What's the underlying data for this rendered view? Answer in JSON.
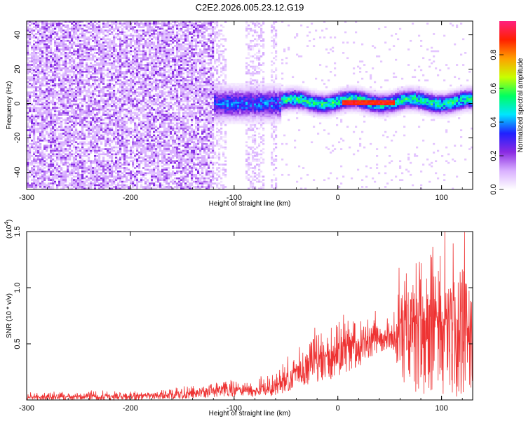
{
  "title": "C2E2.2026.005.23.12.G19",
  "chart_data": [
    {
      "type": "heatmap",
      "xlabel": "Height of straight line (km)",
      "ylabel": "Frequency (Hz)",
      "xlim": [
        -300,
        130
      ],
      "ylim": [
        -50,
        48
      ],
      "xticks": [
        -300,
        -200,
        -100,
        0,
        100
      ],
      "xtick_labels": [
        "-300",
        "-200",
        "-100",
        "0",
        "100"
      ],
      "yticks": [
        -40,
        -20,
        0,
        20,
        40
      ],
      "ytick_labels": [
        "-40",
        "-20",
        "0",
        "20",
        "40"
      ],
      "colorbar": {
        "label": "Normalized spectral amplitude",
        "range": [
          0.0,
          1.0
        ],
        "ticks": [
          0.0,
          0.2,
          0.4,
          0.6,
          0.8
        ],
        "tick_labels": [
          "0.0",
          "0.2",
          "0.4",
          "0.6",
          "0.8"
        ],
        "colormap": [
          "#ffffff",
          "#d9b0ff",
          "#8a2be2",
          "#2020ff",
          "#00e5ff",
          "#00ff60",
          "#c8ff00",
          "#ffa000",
          "#ff2000",
          "#ff2080"
        ]
      },
      "regions": [
        {
          "name": "broadband noise",
          "x_range": [
            -300,
            -120
          ],
          "freq_range": [
            -50,
            48
          ],
          "amplitude": 0.15
        },
        {
          "name": "faint noise bands",
          "x_range": [
            -120,
            -55
          ],
          "freq_range": [
            -50,
            48
          ],
          "amplitude": 0.03
        },
        {
          "name": "noise onset band",
          "x_range": [
            -120,
            -55
          ],
          "freq_range": [
            -12,
            12
          ],
          "amplitude": 0.35
        },
        {
          "name": "line signal",
          "x_range": [
            -55,
            130
          ],
          "freq_range": [
            -6,
            6
          ],
          "amplitude": 0.5
        },
        {
          "name": "peak signal",
          "x_range": [
            5,
            55
          ],
          "freq_range": [
            -1,
            2
          ],
          "amplitude": 0.95
        }
      ]
    },
    {
      "type": "line",
      "xlabel": "Height of straight line (km)",
      "ylabel": "SNR (10 * v/v)",
      "multiplier_label": "(x10^4)",
      "multiplier_base": "(x10",
      "multiplier_exp": "4",
      "multiplier_close": ")",
      "xlim": [
        -300,
        130
      ],
      "ylim": [
        0,
        15000
      ],
      "xticks": [
        -300,
        -200,
        -100,
        0,
        100
      ],
      "xtick_labels": [
        "-300",
        "-200",
        "-100",
        "0",
        "100"
      ],
      "yticks": [
        5000,
        10000,
        15000
      ],
      "ytick_labels": [
        "0.5",
        "1.0",
        "1.5"
      ],
      "color": "#ee3333",
      "series": [
        {
          "name": "SNR",
          "x": [
            -300,
            -250,
            -200,
            -150,
            -120,
            -100,
            -80,
            -60,
            -40,
            -20,
            0,
            20,
            40,
            55,
            60,
            80,
            100,
            120,
            130
          ],
          "y": [
            250,
            300,
            350,
            500,
            900,
            1000,
            800,
            1200,
            2600,
            3800,
            4400,
            5200,
            5800,
            5800,
            6600,
            6800,
            7000,
            7200,
            7200
          ],
          "envelope_max": [
            600,
            700,
            800,
            1000,
            1500,
            1800,
            1500,
            2600,
            4000,
            6500,
            7500,
            7000,
            7500,
            7500,
            11000,
            12000,
            13500,
            15000,
            14000
          ],
          "envelope_min": [
            0,
            0,
            0,
            100,
            200,
            300,
            300,
            400,
            1000,
            1500,
            2000,
            3000,
            4000,
            4500,
            800,
            500,
            300,
            200,
            200
          ]
        }
      ]
    }
  ]
}
